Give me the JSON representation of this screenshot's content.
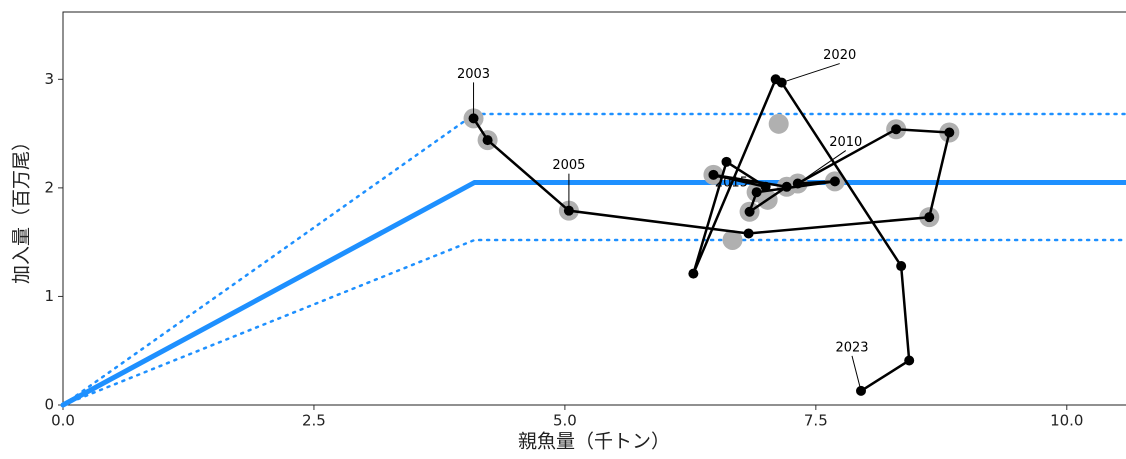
{
  "chart_data": {
    "type": "scatter",
    "xlabel": "親魚量（千トン）",
    "ylabel": "加入量（百万尾）",
    "xlim": [
      0,
      10.59
    ],
    "ylim": [
      0,
      3.62
    ],
    "xticks": [
      {
        "value": 0,
        "label": "0.0"
      },
      2.5,
      {
        "value": 5,
        "label": "5.0"
      },
      7.5,
      {
        "value": 10,
        "label": "10.0"
      }
    ],
    "yticks": [
      0,
      1,
      2,
      3
    ],
    "reference_lines": [
      {
        "color": "#1e90ff",
        "style": "solid",
        "x": [
          0,
          4.1,
          10.59
        ],
        "y": [
          0,
          2.05,
          2.05
        ]
      },
      {
        "color": "#1e90ff",
        "style": "dotted",
        "x": [
          0,
          4.1,
          10.59
        ],
        "y": [
          0,
          2.68,
          2.68
        ]
      },
      {
        "color": "#1e90ff",
        "style": "dotted",
        "x": [
          0,
          4.1,
          10.59
        ],
        "y": [
          0,
          1.52,
          1.52
        ]
      }
    ],
    "series": [
      {
        "color": "#b0b0b0",
        "connect": false,
        "x": [
          4.09,
          4.23,
          5.04,
          6.67,
          8.63,
          8.83,
          8.3,
          7.13,
          7.69,
          6.48,
          6.91,
          6.84,
          7.02,
          7.21,
          7.32
        ],
        "y": [
          2.64,
          2.44,
          1.79,
          1.52,
          1.73,
          2.51,
          2.54,
          2.59,
          2.06,
          2.12,
          1.96,
          1.78,
          1.89,
          2.01,
          2.04
        ]
      },
      {
        "color": "#000000",
        "connect": true,
        "x": [
          4.09,
          4.23,
          5.04,
          6.83,
          8.63,
          8.83,
          8.3,
          7.32,
          7.69,
          6.91,
          6.84,
          7.21,
          6.48,
          7.0,
          6.61,
          6.28,
          7.1,
          7.16,
          8.35,
          8.43,
          7.95
        ],
        "y": [
          2.64,
          2.44,
          1.79,
          1.58,
          1.73,
          2.51,
          2.54,
          2.04,
          2.06,
          1.96,
          1.78,
          2.01,
          2.12,
          2.01,
          2.24,
          1.21,
          3.0,
          2.97,
          1.28,
          0.41,
          0.13
        ],
        "point_labels": [
          "2003",
          null,
          "2005",
          null,
          null,
          null,
          null,
          "2010",
          null,
          null,
          null,
          null,
          "2015",
          null,
          null,
          null,
          null,
          "2020",
          null,
          null,
          "2023"
        ]
      }
    ]
  }
}
